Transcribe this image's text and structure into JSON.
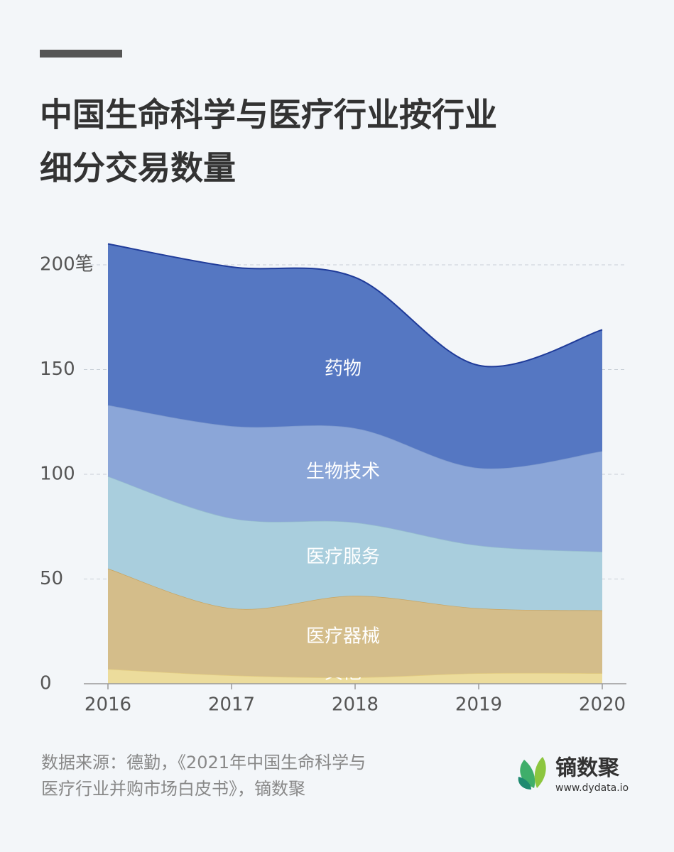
{
  "chart_data": {
    "type": "stacked_area",
    "title": [
      "中国生命科学与医疗行业按行业",
      "细分交易数量"
    ],
    "categories": [
      "2016",
      "2017",
      "2018",
      "2019",
      "2020"
    ],
    "series": [
      {
        "name": "其他",
        "color": "#ecdc9c",
        "values": [
          7,
          4,
          3,
          5,
          5
        ]
      },
      {
        "name": "医疗器械",
        "color": "#d4bd8a",
        "values": [
          48,
          32,
          39,
          31,
          30
        ]
      },
      {
        "name": "医疗服务",
        "color": "#a9cedd",
        "values": [
          44,
          43,
          35,
          30,
          28
        ]
      },
      {
        "name": "生物技术",
        "color": "#8ba6d8",
        "values": [
          34,
          44,
          45,
          37,
          48
        ]
      },
      {
        "name": "药物",
        "color": "#5577c2",
        "values": [
          77,
          76,
          72,
          49,
          58
        ]
      }
    ],
    "ylim": [
      0,
      200
    ],
    "yticks": [
      0,
      50,
      100,
      150,
      {
        "value": 200,
        "label": "200笔"
      }
    ],
    "grid": true,
    "source": [
      "数据来源：德勤，《2021年中国生命科学与",
      "医疗行业并购市场白皮书》，镝数聚"
    ],
    "brand": {
      "name": "镝数聚",
      "url": "www.dydata.io"
    }
  }
}
